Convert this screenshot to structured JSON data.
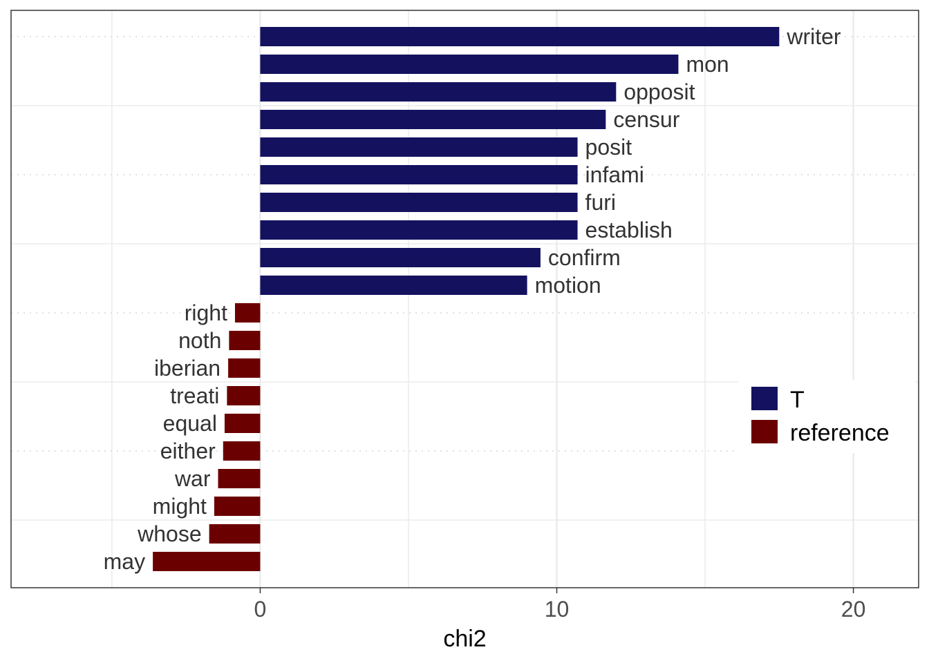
{
  "chart_data": {
    "type": "bar",
    "orientation": "horizontal",
    "xlabel": "chi2",
    "ylabel": "",
    "title": "",
    "xlim": [
      -8.4,
      22.2
    ],
    "x_ticks": [
      0,
      10,
      20
    ],
    "x_tick_labels": [
      "0",
      "10",
      "20"
    ],
    "grid": true,
    "legend_position": "right",
    "legend": [
      {
        "name": "T",
        "color": "#14125f"
      },
      {
        "name": "reference",
        "color": "#6b0000"
      }
    ],
    "bars": [
      {
        "label": "writer",
        "value": 17.5,
        "group": "T"
      },
      {
        "label": "mon",
        "value": 14.1,
        "group": "T"
      },
      {
        "label": "opposit",
        "value": 12.0,
        "group": "T"
      },
      {
        "label": "censur",
        "value": 11.65,
        "group": "T"
      },
      {
        "label": "posit",
        "value": 10.7,
        "group": "T"
      },
      {
        "label": "infami",
        "value": 10.7,
        "group": "T"
      },
      {
        "label": "furi",
        "value": 10.7,
        "group": "T"
      },
      {
        "label": "establish",
        "value": 10.7,
        "group": "T"
      },
      {
        "label": "confirm",
        "value": 9.45,
        "group": "T"
      },
      {
        "label": "motion",
        "value": 9.0,
        "group": "T"
      },
      {
        "label": "right",
        "value": -0.85,
        "group": "reference"
      },
      {
        "label": "noth",
        "value": -1.05,
        "group": "reference"
      },
      {
        "label": "iberian",
        "value": -1.08,
        "group": "reference"
      },
      {
        "label": "treati",
        "value": -1.12,
        "group": "reference"
      },
      {
        "label": "equal",
        "value": -1.2,
        "group": "reference"
      },
      {
        "label": "either",
        "value": -1.25,
        "group": "reference"
      },
      {
        "label": "war",
        "value": -1.42,
        "group": "reference"
      },
      {
        "label": "might",
        "value": -1.55,
        "group": "reference"
      },
      {
        "label": "whose",
        "value": -1.72,
        "group": "reference"
      },
      {
        "label": "may",
        "value": -3.62,
        "group": "reference"
      }
    ]
  }
}
